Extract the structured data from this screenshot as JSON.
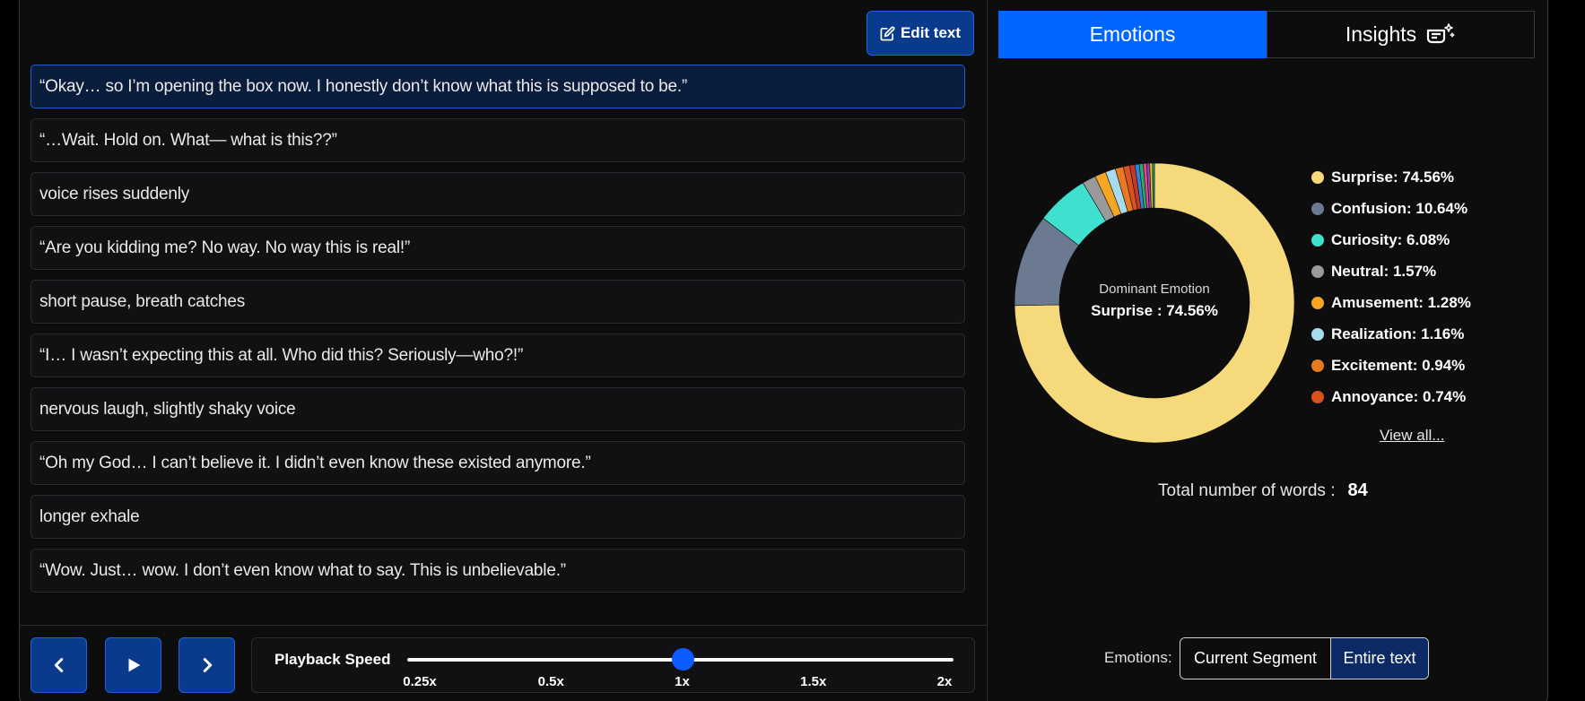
{
  "toolbar": {
    "edit_label": "Edit text"
  },
  "segments": [
    "“Okay… so I’m opening the box now. I honestly don’t know what this is supposed to be.”",
    "“…Wait. Hold on. What— what is this??”",
    "voice rises suddenly",
    "“Are you kidding me? No way. No way this is real!”",
    "short pause, breath catches",
    "“I… I wasn’t expecting this at all. Who did this? Seriously—who?!”",
    "nervous laugh, slightly shaky voice",
    "“Oh my God… I can’t believe it. I didn’t even know these existed anymore.”",
    "longer exhale",
    "“Wow. Just… wow. I don’t even know what to say. This is unbelievable.”"
  ],
  "playback": {
    "label": "Playback Speed",
    "ticks": [
      "0.25x",
      "0.5x",
      "1x",
      "1.5x",
      "2x"
    ],
    "selected": "1x"
  },
  "tabs": {
    "emotions": "Emotions",
    "insights": "Insights"
  },
  "chart_data": {
    "type": "pie",
    "center_label": "Dominant Emotion",
    "center_value": "Surprise : 74.56%",
    "slices": [
      {
        "name": "Surprise",
        "value": 74.56,
        "label": "Surprise: 74.56%",
        "color": "#f5d97a"
      },
      {
        "name": "Confusion",
        "value": 10.64,
        "label": "Confusion: 10.64%",
        "color": "#6b7a90"
      },
      {
        "name": "Curiosity",
        "value": 6.08,
        "label": "Curiosity: 6.08%",
        "color": "#3fe0d0"
      },
      {
        "name": "Neutral",
        "value": 1.57,
        "label": "Neutral: 1.57%",
        "color": "#9a9a9a"
      },
      {
        "name": "Amusement",
        "value": 1.28,
        "label": "Amusement: 1.28%",
        "color": "#f5a623"
      },
      {
        "name": "Realization",
        "value": 1.16,
        "label": "Realization: 1.16%",
        "color": "#a8dcec"
      },
      {
        "name": "Excitement",
        "value": 0.94,
        "label": "Excitement: 0.94%",
        "color": "#e87b22"
      },
      {
        "name": "Annoyance",
        "value": 0.74,
        "label": "Annoyance: 0.74%",
        "color": "#d9531e"
      }
    ],
    "unlabeled_slices": [
      {
        "value": 0.6,
        "color": "#c0392b"
      },
      {
        "value": 0.5,
        "color": "#2e86de"
      },
      {
        "value": 0.45,
        "color": "#27ae60"
      },
      {
        "value": 0.4,
        "color": "#e84393"
      },
      {
        "value": 0.35,
        "color": "#8e44ad"
      },
      {
        "value": 0.3,
        "color": "#f1c40f"
      },
      {
        "value": 0.23,
        "color": "#16a085"
      }
    ]
  },
  "view_all": "View all...",
  "total": {
    "label": "Total number of words :",
    "value": "84"
  },
  "scope": {
    "label": "Emotions:",
    "current": "Current Segment",
    "entire": "Entire text"
  }
}
